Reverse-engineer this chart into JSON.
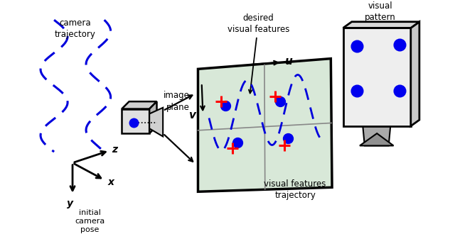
{
  "bg_color": "#ffffff",
  "blue": "#0000ee",
  "dblue": "#0000dd",
  "red": "#ff0000",
  "blk": "#000000",
  "gray1": "#c8c8c8",
  "gray2": "#d8d8d8",
  "gray3": "#b0b0b0",
  "gray4": "#e8e8e8",
  "ip_fill": "#d8e8d8",
  "vp_fill": "#e0e8e0",
  "vp_side": "#b8c8b8",
  "vp_top": "#d0d8d0",
  "cam_front": "#e0e0e0",
  "cam_top": "#d0d0d0",
  "cam_right": "#b8b8b8",
  "cam_lens_fill": "#d0d0d0",
  "label_camera_traj": "camera\ntrajectory",
  "label_image_plane": "image\nplane",
  "label_desired": "desired\nvisual features",
  "label_visual_pattern": "visual\npattern",
  "label_u": "u",
  "label_v": "v",
  "label_init_cam": "initial\ncamera\npose",
  "label_vf_traj": "visual features\ntrajectory",
  "label_x": "x",
  "label_y": "y",
  "label_z": "z"
}
